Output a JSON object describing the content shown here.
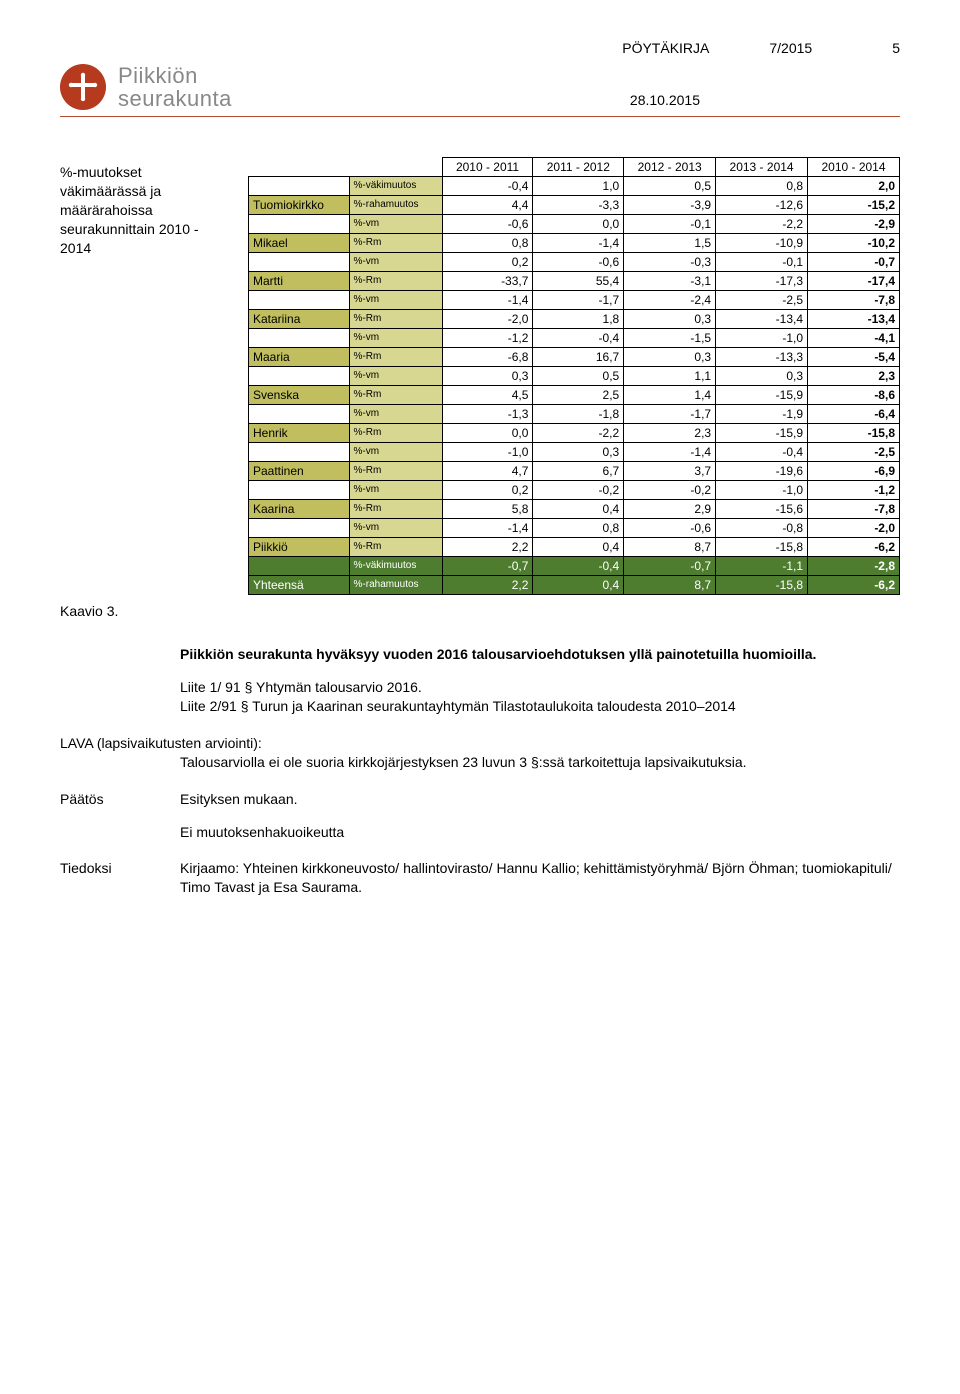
{
  "header": {
    "doc_type": "PÖYTÄKIRJA",
    "doc_num": "7/2015",
    "page_num": "5",
    "date": "28.10.2015",
    "logo_l1": "Piikkiön",
    "logo_l2": "seurakunta"
  },
  "left_label": "%-muutokset väkimäärässä ja määrärahoissa seurakunnittain 2010 - 2014",
  "left_caption": "Kaavio 3.",
  "table": {
    "columns": [
      "2010 - 2011",
      "2011 - 2012",
      "2012 - 2013",
      "2013 - 2014",
      "2010 - 2014"
    ],
    "units": [
      {
        "name": "Tuomiokirkko",
        "rows": [
          {
            "metric": "%-väkimuutos",
            "vals": [
              "-0,4",
              "1,0",
              "0,5",
              "0,8",
              "2,0"
            ]
          },
          {
            "metric": "%-rahamuutos",
            "vals": [
              "4,4",
              "-3,3",
              "-3,9",
              "-12,6",
              "-15,2"
            ]
          }
        ]
      },
      {
        "name": "Mikael",
        "rows": [
          {
            "metric": "%-vm",
            "vals": [
              "-0,6",
              "0,0",
              "-0,1",
              "-2,2",
              "-2,9"
            ]
          },
          {
            "metric": "%-Rm",
            "vals": [
              "0,8",
              "-1,4",
              "1,5",
              "-10,9",
              "-10,2"
            ]
          }
        ]
      },
      {
        "name": "Martti",
        "rows": [
          {
            "metric": "%-vm",
            "vals": [
              "0,2",
              "-0,6",
              "-0,3",
              "-0,1",
              "-0,7"
            ]
          },
          {
            "metric": "%-Rm",
            "vals": [
              "-33,7",
              "55,4",
              "-3,1",
              "-17,3",
              "-17,4"
            ]
          }
        ]
      },
      {
        "name": "Katariina",
        "rows": [
          {
            "metric": "%-vm",
            "vals": [
              "-1,4",
              "-1,7",
              "-2,4",
              "-2,5",
              "-7,8"
            ]
          },
          {
            "metric": "%-Rm",
            "vals": [
              "-2,0",
              "1,8",
              "0,3",
              "-13,4",
              "-13,4"
            ]
          }
        ]
      },
      {
        "name": "Maaria",
        "rows": [
          {
            "metric": "%-vm",
            "vals": [
              "-1,2",
              "-0,4",
              "-1,5",
              "-1,0",
              "-4,1"
            ]
          },
          {
            "metric": "%-Rm",
            "vals": [
              "-6,8",
              "16,7",
              "0,3",
              "-13,3",
              "-5,4"
            ]
          }
        ]
      },
      {
        "name": "Svenska",
        "rows": [
          {
            "metric": "%-vm",
            "vals": [
              "0,3",
              "0,5",
              "1,1",
              "0,3",
              "2,3"
            ]
          },
          {
            "metric": "%-Rm",
            "vals": [
              "4,5",
              "2,5",
              "1,4",
              "-15,9",
              "-8,6"
            ]
          }
        ]
      },
      {
        "name": "Henrik",
        "rows": [
          {
            "metric": "%-vm",
            "vals": [
              "-1,3",
              "-1,8",
              "-1,7",
              "-1,9",
              "-6,4"
            ]
          },
          {
            "metric": "%-Rm",
            "vals": [
              "0,0",
              "-2,2",
              "2,3",
              "-15,9",
              "-15,8"
            ]
          }
        ]
      },
      {
        "name": "Paattinen",
        "rows": [
          {
            "metric": "%-vm",
            "vals": [
              "-1,0",
              "0,3",
              "-1,4",
              "-0,4",
              "-2,5"
            ]
          },
          {
            "metric": "%-Rm",
            "vals": [
              "4,7",
              "6,7",
              "3,7",
              "-19,6",
              "-6,9"
            ]
          }
        ]
      },
      {
        "name": "Kaarina",
        "rows": [
          {
            "metric": "%-vm",
            "vals": [
              "0,2",
              "-0,2",
              "-0,2",
              "-1,0",
              "-1,2"
            ]
          },
          {
            "metric": "%-Rm",
            "vals": [
              "5,8",
              "0,4",
              "2,9",
              "-15,6",
              "-7,8"
            ]
          }
        ]
      },
      {
        "name": "Piikkiö",
        "rows": [
          {
            "metric": "%-vm",
            "vals": [
              "-1,4",
              "0,8",
              "-0,6",
              "-0,8",
              "-2,0"
            ]
          },
          {
            "metric": "%-Rm",
            "vals": [
              "2,2",
              "0,4",
              "8,7",
              "-15,8",
              "-6,2"
            ]
          }
        ]
      }
    ],
    "total": {
      "label": "Yhteensä",
      "rows": [
        {
          "metric": "%-väkimuutos",
          "vals": [
            "-0,7",
            "-0,4",
            "-0,7",
            "-1,1",
            "-2,8"
          ]
        },
        {
          "metric": "%-rahamuutos",
          "vals": [
            "2,2",
            "0,4",
            "8,7",
            "-15,8",
            "-6,2"
          ]
        }
      ]
    },
    "colors": {
      "olive": "#c0be5e",
      "olive_light": "#d8d792",
      "green": "#4f7d2f",
      "border": "#000000"
    }
  },
  "body": {
    "p1": "Piikkiön seurakunta hyväksyy vuoden 2016 talousarvioehdotuksen yllä painotetuilla huomioilla.",
    "p2a": "Liite 1/ 91 § Yhtymän talousarvio 2016.",
    "p2b": "Liite 2/91 § Turun ja Kaarinan seurakuntayhtymän Tilastotaulukoita taloudesta 2010–2014",
    "lava_head": "LAVA (lapsivaikutusten arviointi):",
    "lava_body": "Talousarviolla ei ole suoria kirkkojärjestyksen 23 luvun 3 §:ssä tarkoitettuja lapsivaikutuksia.",
    "paatos_label": "Päätös",
    "paatos_text": "Esityksen mukaan.",
    "paatos_extra": "Ei muutoksenhakuoikeutta",
    "tiedoksi_label": "Tiedoksi",
    "tiedoksi_text": "Kirjaamo: Yhteinen kirkkoneuvosto/ hallintovirasto/ Hannu Kallio; kehittämistyöryhmä/ Björn Öhman; tuomiokapituli/ Timo Tavast ja Esa Saurama."
  }
}
